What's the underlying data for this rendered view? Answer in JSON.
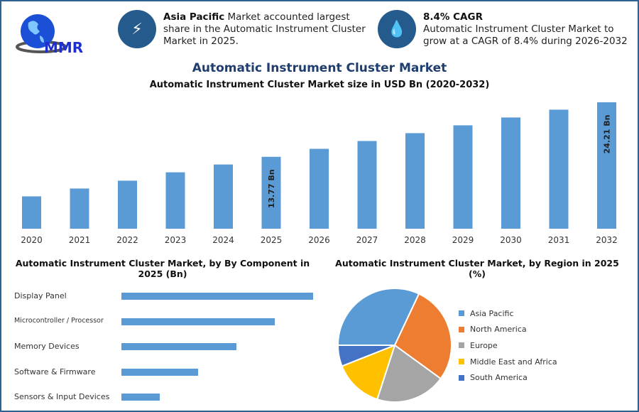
{
  "brand": {
    "logo_text": "MMR"
  },
  "highlights": [
    {
      "icon": "lightning-icon",
      "bold": "Asia Pacific",
      "text": " Market accounted largest share in the Automatic Instrument Cluster Market in 2025."
    },
    {
      "icon": "flame-drop-icon",
      "bold": "8.4% CAGR",
      "text": "Automatic Instrument Cluster Market to grow at a CAGR of 8.4% during 2026-2032"
    }
  ],
  "main_title": "Automatic Instrument Cluster Market",
  "colors": {
    "bar": "#5b9bd5",
    "accent": "#245a8c"
  },
  "chart_data": [
    {
      "type": "bar",
      "title": "Automatic Instrument Cluster Market size in USD Bn (2020-2032)",
      "categories": [
        "2020",
        "2021",
        "2022",
        "2023",
        "2024",
        "2025",
        "2026",
        "2027",
        "2028",
        "2029",
        "2030",
        "2031",
        "2032"
      ],
      "values": [
        6.2,
        7.7,
        9.2,
        10.8,
        12.3,
        13.77,
        15.3,
        16.8,
        18.3,
        19.8,
        21.3,
        22.8,
        24.21
      ],
      "data_labels": {
        "2025": "13.77 Bn",
        "2032": "24.21 Bn"
      },
      "ylim": [
        0,
        26
      ]
    },
    {
      "type": "bar",
      "orientation": "horizontal",
      "title": "Automatic Instrument Cluster Market, by By Component in 2025 (Bn)",
      "categories": [
        "Display Panel",
        "Microcontroller / Processor",
        "Memory Devices",
        "Software & Firmware",
        "Sensors & Input Devices"
      ],
      "values": [
        5,
        4,
        3,
        2,
        1
      ]
    },
    {
      "type": "pie",
      "title": "Automatic Instrument Cluster Market, by Region in 2025 (%)",
      "categories": [
        "Asia Pacific",
        "North America",
        "Europe",
        "Middle East and Africa",
        "South America"
      ],
      "values": [
        32,
        28,
        20,
        14,
        6
      ],
      "colors": [
        "#5b9bd5",
        "#ed7d31",
        "#a5a5a5",
        "#ffc000",
        "#4472c4"
      ],
      "legend": "right"
    }
  ]
}
